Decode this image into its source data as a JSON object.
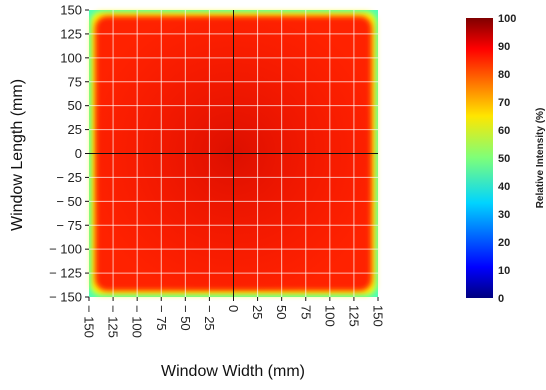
{
  "chart_data": {
    "type": "heatmap",
    "title": "",
    "xlabel": "Window Width (mm)",
    "ylabel": "Window Length (mm)",
    "xlim": [
      -150,
      150
    ],
    "ylim": [
      -150,
      150
    ],
    "x_ticks": [
      "− 150",
      "− 125",
      "− 100",
      "− 75",
      "− 50",
      "− 25",
      "0",
      "25",
      "50",
      "75",
      "100",
      "125",
      "150"
    ],
    "y_ticks": [
      "150",
      "125",
      "100",
      "75",
      "50",
      "25",
      "0",
      "− 25",
      "− 50",
      "− 75",
      "− 100",
      "− 125",
      "− 150"
    ],
    "x_tick_values": [
      -150,
      -125,
      -100,
      -75,
      -50,
      -25,
      0,
      25,
      50,
      75,
      100,
      125,
      150
    ],
    "y_tick_values": [
      150,
      125,
      100,
      75,
      50,
      25,
      0,
      -25,
      -50,
      -75,
      -100,
      -125,
      -150
    ],
    "grid": true,
    "value_description": "Relative intensity is about 80-88% over the interior and falls to about 40-60% at the window edges and corners.",
    "interior_intensity": 84,
    "edge_intensity": 45,
    "colorbar": {
      "title": "Relative Intensity (%)",
      "ticks": [
        "100",
        "90",
        "80",
        "70",
        "60",
        "50",
        "40",
        "30",
        "20",
        "10",
        "0"
      ],
      "tick_values": [
        100,
        90,
        80,
        70,
        60,
        50,
        40,
        30,
        20,
        10,
        0
      ],
      "range": [
        0,
        100
      ],
      "colormap": "jet"
    }
  }
}
